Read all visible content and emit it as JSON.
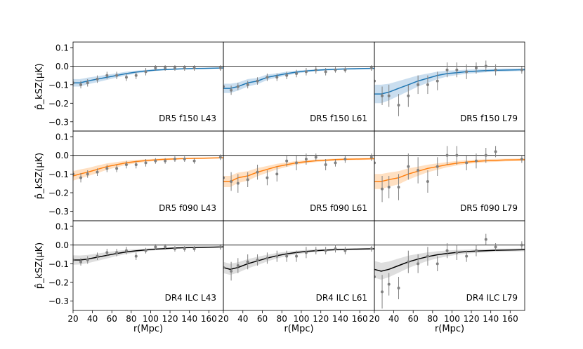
{
  "chart_data": {
    "type": "line",
    "layout": "3x3 grid, shared axes",
    "xlabel": "r(Mpc)",
    "ylabel": "p̂_kSZ(μK)",
    "xlim": [
      20,
      175
    ],
    "ylim": [
      -0.35,
      0.13
    ],
    "xticks": [
      20,
      40,
      60,
      80,
      100,
      120,
      140,
      160
    ],
    "yticks": [
      0.1,
      0.0,
      -0.1,
      -0.2,
      -0.3
    ],
    "ytick_labels": [
      "0.1",
      "0.0",
      "−0.1",
      "−0.2",
      "−0.3"
    ],
    "x_points": [
      20,
      27,
      35,
      45,
      55,
      65,
      75,
      85,
      95,
      105,
      115,
      125,
      135,
      145,
      155,
      165,
      175
    ],
    "zero_line": true,
    "panels": [
      {
        "label": "DR5 f150 L43",
        "color": "#1f77b4",
        "band_color": "#a6c8e5",
        "model": [
          -0.09,
          -0.09,
          -0.08,
          -0.07,
          -0.06,
          -0.05,
          -0.04,
          -0.032,
          -0.026,
          -0.021,
          -0.018,
          -0.016,
          -0.014,
          -0.013,
          -0.012,
          -0.011,
          -0.01
        ],
        "band_half": [
          0.02,
          0.02,
          0.018,
          0.016,
          0.014,
          0.012,
          0.01,
          0.008,
          0.006,
          0.005,
          0.004,
          0.004,
          0.003,
          0.003,
          0.003,
          0.003,
          0.003
        ],
        "points": [
          [
            20,
            -0.09,
            0.02
          ],
          [
            28,
            -0.1,
            0.02
          ],
          [
            35,
            -0.09,
            0.02
          ],
          [
            45,
            -0.07,
            0.02
          ],
          [
            55,
            -0.05,
            0.02
          ],
          [
            65,
            -0.05,
            0.02
          ],
          [
            75,
            -0.06,
            0.02
          ],
          [
            85,
            -0.05,
            0.02
          ],
          [
            95,
            -0.03,
            0.02
          ],
          [
            105,
            -0.01,
            0.015
          ],
          [
            115,
            -0.01,
            0.015
          ],
          [
            125,
            -0.01,
            0.015
          ],
          [
            135,
            -0.01,
            0.015
          ],
          [
            145,
            -0.01,
            0.015
          ],
          [
            172,
            -0.01,
            0.015
          ]
        ]
      },
      {
        "label": "DR5 f150 L61",
        "color": "#1f77b4",
        "band_color": "#a6c8e5",
        "model": [
          -0.12,
          -0.12,
          -0.11,
          -0.09,
          -0.08,
          -0.06,
          -0.05,
          -0.04,
          -0.032,
          -0.026,
          -0.022,
          -0.019,
          -0.017,
          -0.015,
          -0.014,
          -0.013,
          -0.012
        ],
        "band_half": [
          0.025,
          0.025,
          0.022,
          0.02,
          0.017,
          0.015,
          0.012,
          0.01,
          0.008,
          0.006,
          0.005,
          0.005,
          0.004,
          0.004,
          0.004,
          0.003,
          0.003
        ],
        "points": [
          [
            20,
            -0.11,
            0.02
          ],
          [
            28,
            -0.13,
            0.025
          ],
          [
            35,
            -0.11,
            0.02
          ],
          [
            45,
            -0.1,
            0.02
          ],
          [
            55,
            -0.08,
            0.02
          ],
          [
            65,
            -0.06,
            0.02
          ],
          [
            75,
            -0.06,
            0.02
          ],
          [
            85,
            -0.05,
            0.02
          ],
          [
            95,
            -0.04,
            0.02
          ],
          [
            105,
            -0.03,
            0.02
          ],
          [
            115,
            -0.02,
            0.02
          ],
          [
            125,
            -0.03,
            0.02
          ],
          [
            135,
            -0.02,
            0.015
          ],
          [
            145,
            -0.02,
            0.015
          ],
          [
            172,
            -0.01,
            0.015
          ]
        ]
      },
      {
        "label": "DR5 f150 L79",
        "color": "#1f77b4",
        "band_color": "#a6c8e5",
        "model": [
          -0.15,
          -0.15,
          -0.14,
          -0.12,
          -0.1,
          -0.08,
          -0.065,
          -0.05,
          -0.04,
          -0.035,
          -0.03,
          -0.027,
          -0.024,
          -0.022,
          -0.021,
          -0.02,
          -0.019
        ],
        "band_half": [
          0.05,
          0.05,
          0.045,
          0.04,
          0.035,
          0.03,
          0.025,
          0.02,
          0.016,
          0.013,
          0.011,
          0.01,
          0.009,
          0.008,
          0.008,
          0.007,
          0.007
        ],
        "points": [
          [
            20,
            -0.08,
            0.07
          ],
          [
            28,
            -0.16,
            0.05
          ],
          [
            35,
            -0.16,
            0.06
          ],
          [
            45,
            -0.21,
            0.06
          ],
          [
            55,
            -0.16,
            0.06
          ],
          [
            65,
            -0.1,
            0.05
          ],
          [
            75,
            -0.1,
            0.05
          ],
          [
            85,
            -0.08,
            0.05
          ],
          [
            95,
            -0.02,
            0.04
          ],
          [
            105,
            -0.02,
            0.04
          ],
          [
            115,
            -0.03,
            0.04
          ],
          [
            125,
            -0.01,
            0.03
          ],
          [
            135,
            0.0,
            0.03
          ],
          [
            145,
            -0.02,
            0.03
          ],
          [
            172,
            -0.02,
            0.02
          ]
        ]
      },
      {
        "label": "DR5 f090 L43",
        "color": "#ff7f0e",
        "band_color": "#ffcc9a",
        "model": [
          -0.11,
          -0.1,
          -0.09,
          -0.075,
          -0.06,
          -0.05,
          -0.04,
          -0.033,
          -0.028,
          -0.024,
          -0.021,
          -0.019,
          -0.017,
          -0.016,
          -0.015,
          -0.014,
          -0.013
        ],
        "band_half": [
          0.025,
          0.024,
          0.022,
          0.02,
          0.017,
          0.014,
          0.011,
          0.009,
          0.007,
          0.006,
          0.005,
          0.005,
          0.004,
          0.004,
          0.004,
          0.003,
          0.003
        ],
        "points": [
          [
            20,
            -0.1,
            0.02
          ],
          [
            28,
            -0.12,
            0.025
          ],
          [
            35,
            -0.1,
            0.02
          ],
          [
            45,
            -0.09,
            0.02
          ],
          [
            55,
            -0.07,
            0.02
          ],
          [
            65,
            -0.07,
            0.02
          ],
          [
            75,
            -0.05,
            0.02
          ],
          [
            85,
            -0.05,
            0.02
          ],
          [
            95,
            -0.04,
            0.02
          ],
          [
            105,
            -0.03,
            0.015
          ],
          [
            115,
            -0.03,
            0.015
          ],
          [
            125,
            -0.02,
            0.015
          ],
          [
            135,
            -0.02,
            0.015
          ],
          [
            145,
            -0.03,
            0.015
          ],
          [
            172,
            -0.01,
            0.015
          ]
        ]
      },
      {
        "label": "DR5 f090 L61",
        "color": "#ff7f0e",
        "band_color": "#ffcc9a",
        "model": [
          -0.14,
          -0.14,
          -0.12,
          -0.11,
          -0.09,
          -0.075,
          -0.06,
          -0.05,
          -0.04,
          -0.034,
          -0.029,
          -0.026,
          -0.023,
          -0.021,
          -0.02,
          -0.019,
          -0.018
        ],
        "band_half": [
          0.03,
          0.03,
          0.028,
          0.025,
          0.022,
          0.018,
          0.015,
          0.012,
          0.01,
          0.008,
          0.007,
          0.006,
          0.006,
          0.005,
          0.005,
          0.005,
          0.004
        ],
        "points": [
          [
            20,
            -0.12,
            0.04
          ],
          [
            28,
            -0.14,
            0.05
          ],
          [
            35,
            -0.15,
            0.05
          ],
          [
            45,
            -0.13,
            0.04
          ],
          [
            55,
            -0.09,
            0.04
          ],
          [
            65,
            -0.12,
            0.04
          ],
          [
            75,
            -0.1,
            0.04
          ],
          [
            85,
            -0.03,
            0.03
          ],
          [
            95,
            -0.04,
            0.04
          ],
          [
            105,
            -0.02,
            0.03
          ],
          [
            115,
            -0.01,
            0.02
          ],
          [
            125,
            -0.05,
            0.03
          ],
          [
            135,
            -0.04,
            0.02
          ],
          [
            145,
            -0.02,
            0.02
          ],
          [
            172,
            -0.01,
            0.02
          ]
        ]
      },
      {
        "label": "DR5 f090 L79",
        "color": "#ff7f0e",
        "band_color": "#ffcc9a",
        "model": [
          -0.14,
          -0.14,
          -0.13,
          -0.12,
          -0.1,
          -0.085,
          -0.07,
          -0.06,
          -0.05,
          -0.042,
          -0.036,
          -0.032,
          -0.029,
          -0.027,
          -0.025,
          -0.024,
          -0.023
        ],
        "band_half": [
          0.04,
          0.04,
          0.038,
          0.035,
          0.03,
          0.025,
          0.02,
          0.017,
          0.014,
          0.012,
          0.01,
          0.009,
          0.008,
          0.008,
          0.007,
          0.007,
          0.007
        ],
        "points": [
          [
            20,
            -0.04,
            0.13
          ],
          [
            28,
            -0.18,
            0.07
          ],
          [
            35,
            -0.17,
            0.06
          ],
          [
            45,
            -0.17,
            0.07
          ],
          [
            55,
            -0.06,
            0.07
          ],
          [
            65,
            -0.08,
            0.07
          ],
          [
            75,
            -0.14,
            0.06
          ],
          [
            85,
            -0.06,
            0.05
          ],
          [
            95,
            0.0,
            0.05
          ],
          [
            105,
            0.0,
            0.05
          ],
          [
            115,
            -0.04,
            0.04
          ],
          [
            125,
            -0.03,
            0.04
          ],
          [
            135,
            0.0,
            0.04
          ],
          [
            145,
            0.02,
            0.03
          ],
          [
            172,
            -0.02,
            0.02
          ]
        ]
      },
      {
        "label": "DR4 ILC L43",
        "color": "#000000",
        "band_color": "#c8c8c8",
        "model": [
          -0.08,
          -0.08,
          -0.075,
          -0.065,
          -0.055,
          -0.045,
          -0.037,
          -0.031,
          -0.026,
          -0.022,
          -0.019,
          -0.016,
          -0.014,
          -0.013,
          -0.012,
          -0.011,
          -0.01
        ],
        "band_half": [
          0.025,
          0.024,
          0.022,
          0.02,
          0.017,
          0.014,
          0.011,
          0.009,
          0.007,
          0.006,
          0.005,
          0.005,
          0.004,
          0.004,
          0.004,
          0.003,
          0.003
        ],
        "points": [
          [
            20,
            -0.08,
            0.02
          ],
          [
            28,
            -0.09,
            0.02
          ],
          [
            35,
            -0.08,
            0.02
          ],
          [
            45,
            -0.06,
            0.02
          ],
          [
            55,
            -0.04,
            0.02
          ],
          [
            65,
            -0.04,
            0.02
          ],
          [
            75,
            -0.03,
            0.02
          ],
          [
            85,
            -0.06,
            0.02
          ],
          [
            95,
            -0.03,
            0.015
          ],
          [
            105,
            -0.01,
            0.015
          ],
          [
            115,
            -0.01,
            0.015
          ],
          [
            125,
            -0.02,
            0.015
          ],
          [
            135,
            -0.02,
            0.015
          ],
          [
            145,
            -0.02,
            0.015
          ],
          [
            172,
            -0.01,
            0.015
          ]
        ]
      },
      {
        "label": "DR4 ILC L61",
        "color": "#000000",
        "band_color": "#c8c8c8",
        "model": [
          -0.12,
          -0.13,
          -0.12,
          -0.1,
          -0.085,
          -0.07,
          -0.057,
          -0.047,
          -0.04,
          -0.034,
          -0.03,
          -0.027,
          -0.025,
          -0.023,
          -0.022,
          -0.021,
          -0.02
        ],
        "band_half": [
          0.03,
          0.03,
          0.028,
          0.025,
          0.022,
          0.018,
          0.015,
          0.012,
          0.01,
          0.008,
          0.007,
          0.006,
          0.006,
          0.005,
          0.005,
          0.005,
          0.004
        ],
        "points": [
          [
            20,
            -0.12,
            0.03
          ],
          [
            28,
            -0.14,
            0.05
          ],
          [
            35,
            -0.11,
            0.04
          ],
          [
            45,
            -0.09,
            0.04
          ],
          [
            55,
            -0.08,
            0.03
          ],
          [
            65,
            -0.07,
            0.03
          ],
          [
            75,
            -0.06,
            0.03
          ],
          [
            85,
            -0.06,
            0.03
          ],
          [
            95,
            -0.06,
            0.03
          ],
          [
            105,
            -0.04,
            0.03
          ],
          [
            115,
            -0.03,
            0.02
          ],
          [
            125,
            -0.03,
            0.02
          ],
          [
            135,
            -0.02,
            0.02
          ],
          [
            145,
            -0.03,
            0.02
          ],
          [
            172,
            -0.02,
            0.015
          ]
        ]
      },
      {
        "label": "DR4 ILC L79",
        "color": "#000000",
        "band_color": "#c8c8c8",
        "model": [
          -0.13,
          -0.14,
          -0.13,
          -0.11,
          -0.09,
          -0.075,
          -0.062,
          -0.052,
          -0.045,
          -0.039,
          -0.035,
          -0.032,
          -0.03,
          -0.028,
          -0.027,
          -0.026,
          -0.025
        ],
        "band_half": [
          0.045,
          0.045,
          0.042,
          0.038,
          0.033,
          0.028,
          0.023,
          0.019,
          0.016,
          0.013,
          0.011,
          0.01,
          0.009,
          0.009,
          0.008,
          0.008,
          0.008
        ],
        "points": [
          [
            20,
            -0.17,
            0.07
          ],
          [
            28,
            -0.25,
            0.09
          ],
          [
            35,
            -0.21,
            0.06
          ],
          [
            45,
            -0.23,
            0.06
          ],
          [
            55,
            -0.09,
            0.06
          ],
          [
            65,
            -0.1,
            0.05
          ],
          [
            75,
            -0.06,
            0.05
          ],
          [
            85,
            -0.1,
            0.04
          ],
          [
            95,
            -0.03,
            0.04
          ],
          [
            105,
            -0.04,
            0.04
          ],
          [
            115,
            -0.06,
            0.03
          ],
          [
            125,
            -0.03,
            0.03
          ],
          [
            135,
            0.03,
            0.03
          ],
          [
            145,
            -0.01,
            0.02
          ],
          [
            172,
            0.0,
            0.02
          ]
        ]
      }
    ]
  }
}
